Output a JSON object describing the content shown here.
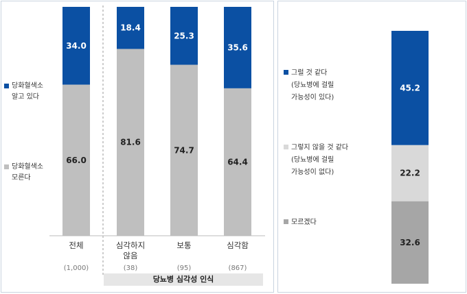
{
  "left_chart": {
    "legend": [
      {
        "lines": [
          "당화혈색소",
          "알고 있다"
        ],
        "color": "#0b50a3"
      },
      {
        "lines": [
          "당화혈색소",
          "모른다"
        ],
        "color": "#bfbfbf"
      }
    ],
    "group_label": "당뇨병 심각성 인식"
  },
  "right_chart": {
    "legend": [
      {
        "lines": [
          "그럴 것 같다",
          "(당뇨병에 걸릴",
          "가능성이 있다)"
        ],
        "color": "#0b50a3"
      },
      {
        "lines": [
          "그렇지 않을 것 같다",
          "(당뇨병에 걸릴",
          "가능성이 없다)"
        ],
        "color": "#d9d9d9"
      },
      {
        "lines": [
          "모르겠다"
        ],
        "color": "#a6a6a6"
      }
    ]
  },
  "chart_data": [
    {
      "type": "bar",
      "stacked": true,
      "categories": [
        "전체",
        "심각하지 않음",
        "보통",
        "심각함"
      ],
      "category_lines": [
        [
          "전체"
        ],
        [
          "심각하지",
          "않음"
        ],
        [
          "보통"
        ],
        [
          "심각함"
        ]
      ],
      "counts": [
        "(1,000)",
        "(38)",
        "(95)",
        "(867)"
      ],
      "series": [
        {
          "name": "당화혈색소 알고 있다",
          "values": [
            34.0,
            18.4,
            25.3,
            35.6
          ],
          "color": "#0b50a3"
        },
        {
          "name": "당화혈색소 모른다",
          "values": [
            66.0,
            81.6,
            74.7,
            64.4
          ],
          "color": "#bfbfbf"
        }
      ],
      "value_labels": {
        "top": [
          "34.0",
          "18.4",
          "25.3",
          "35.6"
        ],
        "bottom": [
          "66.0",
          "81.6",
          "74.7",
          "64.4"
        ]
      },
      "ylim": [
        0,
        100
      ],
      "grid": false
    },
    {
      "type": "bar",
      "stacked": true,
      "categories": [
        ""
      ],
      "series": [
        {
          "name": "그럴 것 같다 (당뇨병에 걸릴 가능성이 있다)",
          "values": [
            45.2
          ],
          "color": "#0b50a3"
        },
        {
          "name": "그렇지 않을 것 같다 (당뇨병에 걸릴 가능성이 없다)",
          "values": [
            22.2
          ],
          "color": "#d9d9d9"
        },
        {
          "name": "모르겠다",
          "values": [
            32.6
          ],
          "color": "#a6a6a6"
        }
      ],
      "value_labels": [
        "45.2",
        "22.2",
        "32.6"
      ],
      "ylim": [
        0,
        100
      ],
      "grid": false
    }
  ]
}
